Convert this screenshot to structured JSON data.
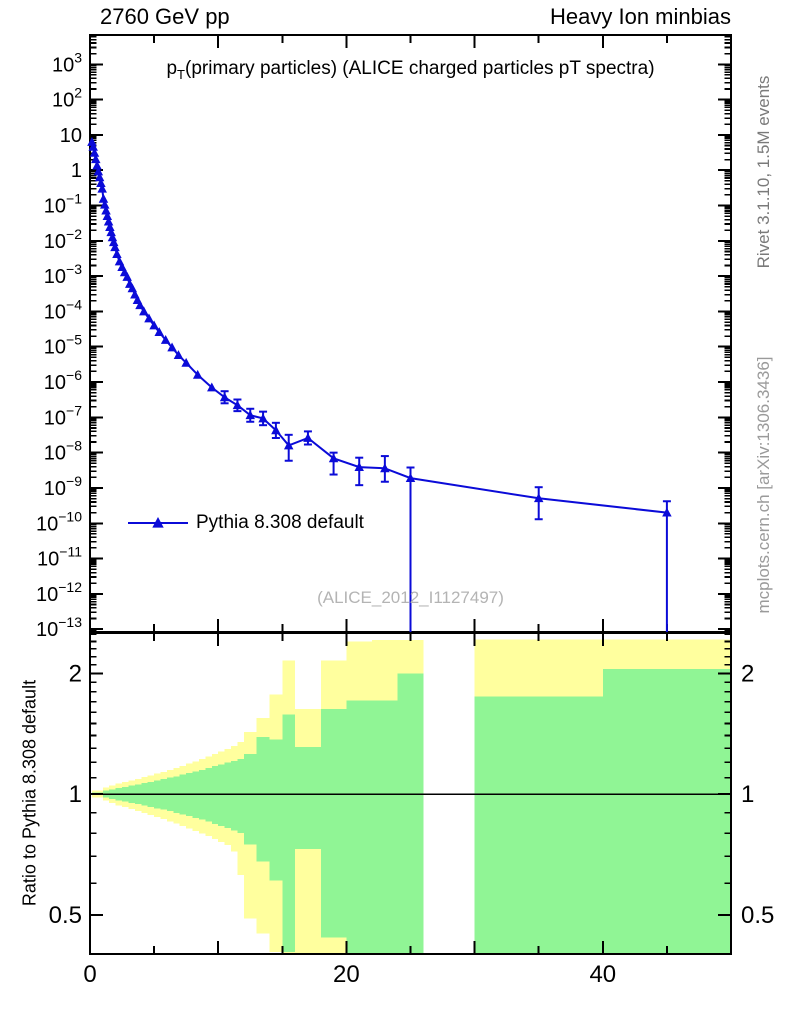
{
  "header": {
    "left": "2760 GeV pp",
    "right": "Heavy Ion minbias"
  },
  "main_title": {
    "prefix": "p",
    "sub": "T",
    "rest": "(primary particles) (ALICE charged particles pT spectra)"
  },
  "legend": {
    "label": "Pythia 8.308 default"
  },
  "watermark": "(ALICE_2012_I1127497)",
  "side_texts": {
    "top": "Rivet 3.1.10,  1.5M events",
    "bottom": "mcplots.cern.ch [arXiv:1306.3436]"
  },
  "ratio_ylabel": "Ratio to Pythia 8.308 default",
  "colors": {
    "series": "#0b0bd8",
    "band_green": "#90f595",
    "band_yellow": "#ffff9e",
    "frame": "#000000",
    "gray_text": "#8c8c8c",
    "watermark": "#b4b4b4"
  },
  "chart_data": {
    "type": "line",
    "title": "pT(primary particles) (ALICE charged particles pT spectra)",
    "top_left": "2760 GeV pp",
    "top_right": "Heavy Ion minbias",
    "x_range": [
      0,
      50
    ],
    "x_ticks_labeled": [
      0,
      20,
      40
    ],
    "x_minor_step": 5,
    "main_axis": {
      "scale": "log10",
      "log10_range": [
        -13.08,
        3.83
      ],
      "labeled_decades": [
        3,
        2,
        1,
        0,
        -1,
        -2,
        -3,
        -4,
        -5,
        -6,
        -7,
        -8,
        -9,
        -10,
        -11,
        -12,
        -13
      ]
    },
    "series": [
      {
        "name": "Pythia 8.308 default",
        "marker": "filled-triangle-up",
        "points": [
          [
            0.15,
            6.3
          ],
          [
            0.25,
            4.6
          ],
          [
            0.35,
            3.1
          ],
          [
            0.45,
            2.05
          ],
          [
            0.55,
            1.35
          ],
          [
            0.65,
            0.92
          ],
          [
            0.75,
            0.63
          ],
          [
            0.85,
            0.43
          ],
          [
            0.95,
            0.3
          ],
          [
            1.05,
            0.155
          ],
          [
            1.15,
            0.105
          ],
          [
            1.25,
            0.072
          ],
          [
            1.35,
            0.05
          ],
          [
            1.45,
            0.035
          ],
          [
            1.55,
            0.0245
          ],
          [
            1.65,
            0.0175
          ],
          [
            1.75,
            0.0125
          ],
          [
            1.85,
            0.0091
          ],
          [
            1.95,
            0.0066
          ],
          [
            2.1,
            0.0042
          ],
          [
            2.3,
            0.0026
          ],
          [
            2.5,
            0.0018
          ],
          [
            2.7,
            0.00128
          ],
          [
            2.9,
            0.00095
          ],
          [
            3.1,
            0.0006
          ],
          [
            3.3,
            0.00045
          ],
          [
            3.5,
            0.0003
          ],
          [
            3.7,
            0.00021
          ],
          [
            3.9,
            0.00015
          ],
          [
            4.2,
            0.0001
          ],
          [
            4.6,
            6.3e-05
          ],
          [
            5.0,
            4e-05
          ],
          [
            5.4,
            2.6e-05
          ],
          [
            5.9,
            1.55e-05
          ],
          [
            6.4,
            9.5e-06
          ],
          [
            6.9,
            5.8e-06
          ],
          [
            7.5,
            3.5e-06
          ],
          [
            8.4,
            1.6e-06
          ],
          [
            9.5,
            7e-07
          ],
          [
            10.5,
            3.7e-07,
            2.5e-07,
            5.5e-07
          ],
          [
            11.5,
            2.2e-07,
            1.5e-07,
            3.2e-07
          ],
          [
            12.5,
            1.15e-07,
            7.5e-08,
            1.75e-07
          ],
          [
            13.5,
            9.3e-08,
            6e-08,
            1.45e-07
          ],
          [
            14.5,
            4.3e-08,
            2.6e-08,
            7e-08
          ],
          [
            15.5,
            1.6e-08,
            5.9e-09,
            3.2e-08
          ],
          [
            17,
            2.6e-08,
            1.7e-08,
            4e-08
          ],
          [
            19,
            6.9e-09,
            2.4e-09,
            1e-08
          ],
          [
            21,
            3.9e-09,
            1.2e-09,
            7.2e-09
          ],
          [
            23,
            3.6e-09,
            1.5e-09,
            8e-09
          ],
          [
            25,
            1.9e-09,
            0,
            3.8e-09
          ],
          [
            35,
            5.1e-10,
            1.3e-10,
            1.05e-09
          ],
          [
            45,
            2e-10,
            0,
            4.2e-10
          ]
        ]
      }
    ],
    "ratio": {
      "scale": "log",
      "range": [
        0.4,
        2.52
      ],
      "ticks": [
        0.5,
        1,
        2
      ],
      "reference": 1.0,
      "bands": [
        [
          0.15,
          1,
          0.98,
          1.02,
          0.995,
          1.01
        ],
        [
          1,
          1.5,
          0.965,
          1.04,
          0.98,
          1.02
        ],
        [
          1.5,
          2,
          0.95,
          1.05,
          0.972,
          1.028
        ],
        [
          2,
          2.5,
          0.938,
          1.062,
          0.965,
          1.035
        ],
        [
          2.5,
          3,
          0.928,
          1.072,
          0.958,
          1.042
        ],
        [
          3,
          3.5,
          0.918,
          1.082,
          0.95,
          1.05
        ],
        [
          3.5,
          4,
          0.908,
          1.092,
          0.944,
          1.058
        ],
        [
          4,
          4.5,
          0.898,
          1.103,
          0.937,
          1.065
        ],
        [
          4.5,
          5,
          0.888,
          1.113,
          0.93,
          1.073
        ],
        [
          5,
          5.5,
          0.877,
          1.125,
          0.922,
          1.082
        ],
        [
          5.5,
          6,
          0.867,
          1.137,
          0.915,
          1.09
        ],
        [
          6,
          6.5,
          0.856,
          1.15,
          0.907,
          1.099
        ],
        [
          6.5,
          7,
          0.845,
          1.163,
          0.899,
          1.108
        ],
        [
          7,
          7.5,
          0.833,
          1.177,
          0.891,
          1.118
        ],
        [
          7.5,
          8,
          0.822,
          1.192,
          0.882,
          1.128
        ],
        [
          8,
          8.5,
          0.81,
          1.207,
          0.873,
          1.139
        ],
        [
          8.5,
          9,
          0.798,
          1.223,
          0.864,
          1.15
        ],
        [
          9,
          9.5,
          0.786,
          1.24,
          0.854,
          1.162
        ],
        [
          9.5,
          10,
          0.773,
          1.258,
          0.844,
          1.174
        ],
        [
          10,
          10.5,
          0.76,
          1.277,
          0.834,
          1.187
        ],
        [
          10.5,
          11,
          0.747,
          1.297,
          0.823,
          1.2
        ],
        [
          11,
          11.5,
          0.72,
          1.32,
          0.812,
          1.21
        ],
        [
          11.5,
          12,
          0.63,
          1.35,
          0.8,
          1.225
        ],
        [
          12,
          13,
          0.49,
          1.43,
          0.75,
          1.26
        ],
        [
          13,
          14,
          0.45,
          1.55,
          0.68,
          1.39
        ],
        [
          14,
          15,
          0.405,
          1.77,
          0.61,
          1.37
        ],
        [
          15,
          16,
          0.4,
          2.15,
          0.405,
          1.58
        ],
        [
          16,
          18,
          0.4,
          1.63,
          0.73,
          1.31
        ],
        [
          18,
          20,
          0.4,
          2.15,
          0.44,
          1.63
        ],
        [
          20,
          22,
          0.4,
          2.4,
          0.4,
          1.71
        ],
        [
          22,
          24,
          0.4,
          2.42,
          0.4,
          1.71
        ],
        [
          24,
          26,
          0.4,
          2.42,
          0.4,
          2.0
        ],
        [
          30,
          40,
          0.4,
          2.43,
          0.4,
          1.75
        ],
        [
          40,
          50,
          0.4,
          2.43,
          0.4,
          2.05
        ]
      ]
    }
  }
}
